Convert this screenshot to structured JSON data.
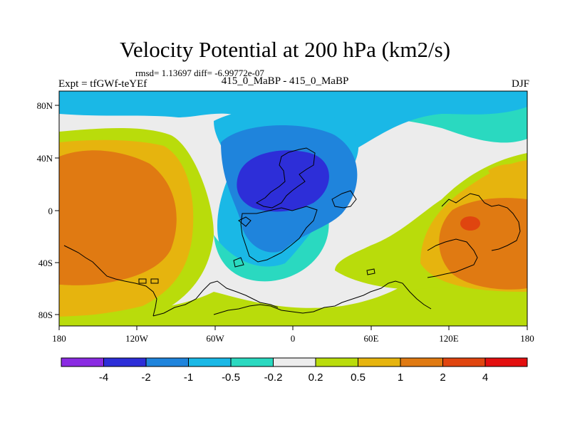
{
  "title": "Velocity Potential at 200 hPa (km2/s)",
  "stats": "rmsd= 1.13697 diff= -6.99772e-07",
  "experiment": "Expt = tfGWf-teYEf",
  "comparison": "415_0_MaBP - 415_0_MaBP",
  "season": "DJF",
  "map": {
    "lat_ticks": [
      "80N",
      "40N",
      "0",
      "40S",
      "80S"
    ],
    "lon_ticks": [
      "180",
      "120W",
      "60W",
      "0",
      "60E",
      "120E",
      "180"
    ]
  },
  "colorbar": {
    "labels": [
      "-4",
      "-2",
      "-1",
      "-0.5",
      "-0.2",
      "0.2",
      "0.5",
      "1",
      "2",
      "4"
    ],
    "colors": [
      "#8a2be2",
      "#2d2ed8",
      "#1f84dc",
      "#1ab8e6",
      "#2ad9c0",
      "#ececec",
      "#b9dc0b",
      "#e6b40e",
      "#e07a12",
      "#e0450f",
      "#e30f0f"
    ]
  }
}
